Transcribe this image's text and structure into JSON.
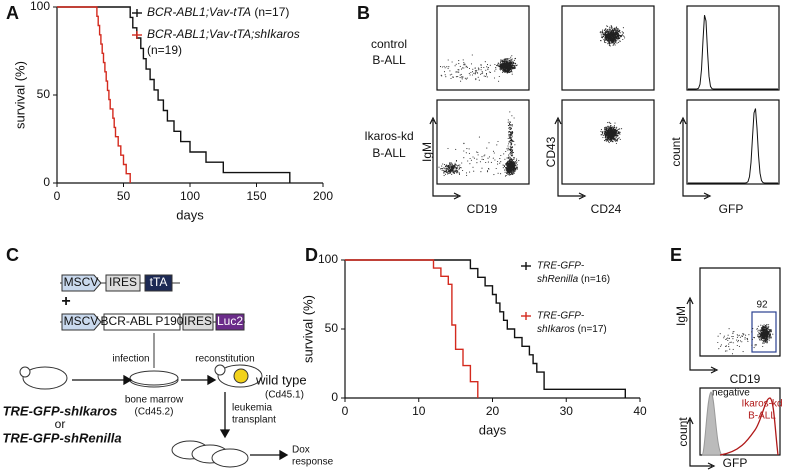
{
  "letters": [
    "A",
    "B",
    "C",
    "D",
    "E"
  ],
  "chart_data": [
    {
      "type": "line",
      "ylabel": "survival (%)",
      "xlabel": "days",
      "xlim": [
        0,
        200
      ],
      "xticks": [
        0,
        50,
        100,
        150,
        200
      ],
      "ylim": [
        0,
        100
      ],
      "yticks": [
        0,
        50,
        100
      ],
      "series": [
        {
          "name": "BCR-ABL1;Vav-tTA",
          "n_label": "(n=17)",
          "color": "#111111",
          "x": [
            0,
            55,
            57,
            60,
            63,
            65,
            67,
            70,
            73,
            76,
            80,
            83,
            88,
            93,
            100,
            112,
            125,
            175
          ],
          "values": [
            100,
            94.1,
            88.2,
            82.4,
            76.5,
            70.6,
            64.7,
            58.8,
            52.9,
            47.1,
            41.2,
            35.3,
            29.4,
            23.5,
            17.6,
            11.8,
            5.9,
            0
          ]
        },
        {
          "name": "BCR-ABL1;Vav-tTA;shIkaros",
          "n_label": "(n=19)",
          "color": "#d42a1e",
          "x": [
            0,
            30,
            31,
            32,
            33,
            34,
            35,
            36,
            37,
            38,
            39,
            40,
            42,
            43,
            44,
            46,
            48,
            50,
            52,
            55
          ],
          "values": [
            100,
            94.7,
            89.5,
            84.2,
            78.9,
            73.7,
            68.4,
            63.2,
            57.9,
            52.6,
            47.4,
            42.1,
            36.8,
            31.6,
            26.3,
            21.1,
            15.8,
            10.5,
            5.3,
            0
          ]
        }
      ]
    },
    {
      "type": "line",
      "ylabel": "survival (%)",
      "xlabel": "days",
      "xlim": [
        0,
        40
      ],
      "xticks": [
        0,
        10,
        20,
        30,
        40
      ],
      "ylim": [
        0,
        100
      ],
      "yticks": [
        0,
        50,
        100
      ],
      "series": [
        {
          "label_lines": [
            "TRE-GFP-",
            "shRenilla"
          ],
          "n_label": "(n=16)",
          "color": "#111111",
          "x": [
            0,
            17,
            18,
            19,
            20,
            20.5,
            21,
            21.5,
            22,
            23,
            24,
            25,
            25.5,
            26,
            27,
            38
          ],
          "values": [
            100,
            93.8,
            87.5,
            81.3,
            75,
            68.8,
            62.5,
            56.3,
            50,
            43.8,
            37.5,
            31.3,
            25,
            18.8,
            6.3,
            0
          ]
        },
        {
          "label_lines": [
            "TRE-GFP-",
            "shIkaros"
          ],
          "n_label": "(n=17)",
          "color": "#d42a1e",
          "x": [
            0,
            12,
            13,
            14,
            14.5,
            15,
            16,
            17,
            18
          ],
          "values": [
            100,
            94.1,
            88.2,
            82.4,
            52.9,
            35.3,
            23.5,
            11.8,
            0
          ]
        }
      ]
    }
  ],
  "panel_b": {
    "rows": [
      [
        "control",
        "B-ALL"
      ],
      [
        "Ikaros-kd",
        "B-ALL"
      ]
    ],
    "axes": [
      [
        "IgM",
        "CD19"
      ],
      [
        "CD43",
        "CD24"
      ],
      [
        "count",
        "GFP"
      ]
    ]
  },
  "panel_c": {
    "vector1": [
      "MSCV",
      "IRES",
      "tTA"
    ],
    "plus": "+",
    "vector2": [
      "MSCV",
      "BCR-ABL P190",
      "IRES",
      "Luc2"
    ],
    "donor": [
      "TRE-GFP-shIkaros",
      "or",
      "TRE-GFP-shRenilla"
    ],
    "infection": "infection",
    "reconstitution": "reconstitution",
    "marrow": [
      "bone marrow",
      "(Cd45.2)"
    ],
    "recipient": [
      "wild type",
      "(Cd45.1)"
    ],
    "transplant": [
      "leukemia",
      "transplant"
    ],
    "outcome": [
      "Dox",
      "response"
    ]
  },
  "panel_e": {
    "scatter_axes": [
      "IgM",
      "CD19"
    ],
    "gate_label": "92",
    "hist_axes": [
      "count",
      "GFP"
    ],
    "negative": "negative",
    "sample": [
      "Ikaros-kd",
      "B-ALL"
    ]
  }
}
